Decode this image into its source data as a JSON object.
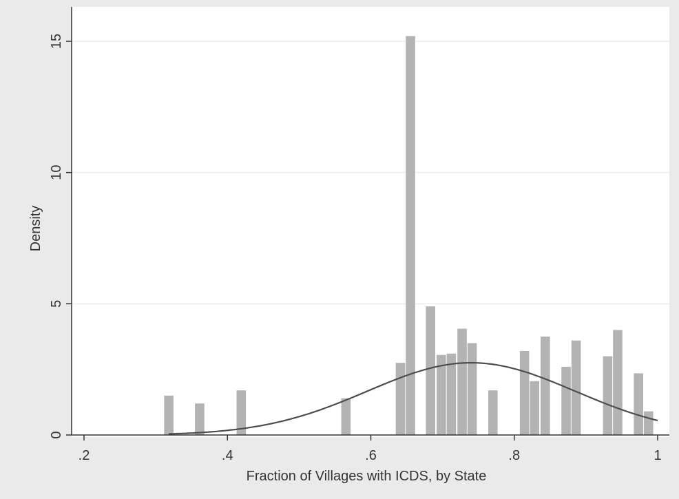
{
  "chart_data": {
    "type": "bar",
    "title": "",
    "xlabel": "Fraction of Villages with ICDS, by State",
    "ylabel": "Density",
    "xlim": [
      0.2,
      1.0
    ],
    "ylim": [
      0,
      15.5
    ],
    "x_ticks": [
      {
        "value": 0.2,
        "label": ".2"
      },
      {
        "value": 0.4,
        "label": ".4"
      },
      {
        "value": 0.6,
        "label": ".6"
      },
      {
        "value": 0.8,
        "label": ".8"
      },
      {
        "value": 1.0,
        "label": "1"
      }
    ],
    "y_ticks": [
      {
        "value": 0,
        "label": "0"
      },
      {
        "value": 5,
        "label": "5"
      },
      {
        "value": 10,
        "label": "10"
      },
      {
        "value": 15,
        "label": "15"
      }
    ],
    "grid": true,
    "bin_width": 0.0145,
    "bars": [
      {
        "x": 0.319,
        "density": 1.5
      },
      {
        "x": 0.362,
        "density": 1.2
      },
      {
        "x": 0.42,
        "density": 1.7
      },
      {
        "x": 0.566,
        "density": 1.4
      },
      {
        "x": 0.642,
        "density": 2.75
      },
      {
        "x": 0.656,
        "density": 15.2
      },
      {
        "x": 0.684,
        "density": 4.9
      },
      {
        "x": 0.699,
        "density": 3.05
      },
      {
        "x": 0.713,
        "density": 3.1
      },
      {
        "x": 0.728,
        "density": 4.05
      },
      {
        "x": 0.742,
        "density": 3.5
      },
      {
        "x": 0.771,
        "density": 1.7
      },
      {
        "x": 0.815,
        "density": 3.2
      },
      {
        "x": 0.829,
        "density": 2.05
      },
      {
        "x": 0.844,
        "density": 3.75
      },
      {
        "x": 0.873,
        "density": 2.6
      },
      {
        "x": 0.887,
        "density": 3.6
      },
      {
        "x": 0.931,
        "density": 3.0
      },
      {
        "x": 0.945,
        "density": 4.0
      },
      {
        "x": 0.974,
        "density": 2.35
      },
      {
        "x": 0.988,
        "density": 0.9
      }
    ],
    "normal_curve": {
      "mean": 0.74,
      "sd": 0.145
    },
    "colors": {
      "background": "#eaeaea",
      "plot_region": "#ffffff",
      "bar": "#b3b3b3",
      "curve": "#4d4d4d",
      "grid": "#ececec",
      "axis": "#333333"
    }
  }
}
